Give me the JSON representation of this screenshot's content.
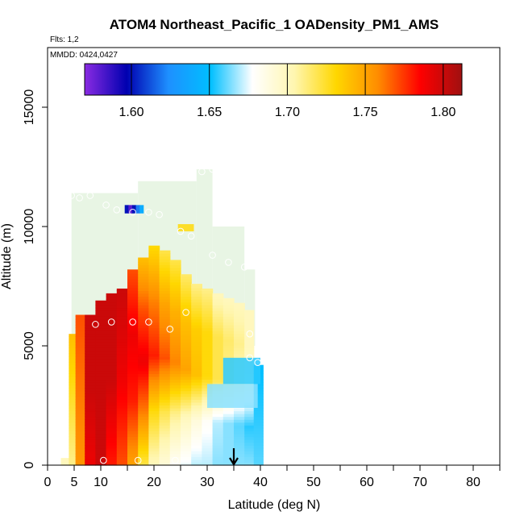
{
  "chart_data": {
    "type": "heatmap",
    "title": "ATOM4 Northeast_Pacific_1 OADensity_PM1_AMS",
    "flights_label": "Flts: 1,2",
    "mmdd_label": "MMDD: 0424,0427",
    "xlabel": "Latitude (deg N)",
    "ylabel": "Altitude (m)",
    "xlim": [
      0,
      85
    ],
    "ylim": [
      0,
      17500
    ],
    "x_ticks": [
      0,
      5,
      10,
      20,
      30,
      40,
      50,
      60,
      70,
      80
    ],
    "x_ticks_unlabeled": [
      15,
      25,
      35,
      45,
      55,
      65,
      75,
      85
    ],
    "y_ticks": [
      0,
      5000,
      10000,
      15000
    ],
    "colorbar": {
      "range": [
        1.57,
        1.812
      ],
      "tick_values": [
        1.6,
        1.65,
        1.7,
        1.75,
        1.8
      ],
      "tick_labels": [
        "1.60",
        "1.65",
        "1.70",
        "1.75",
        "1.80"
      ],
      "stops": [
        "#8a2be2",
        "#0000b0",
        "#1e90ff",
        "#00bfff",
        "#ffffff",
        "#fff6b0",
        "#ffd700",
        "#ff8c00",
        "#ff0000",
        "#a01010"
      ]
    },
    "marker_latitude": 35,
    "columns": [
      {
        "lat": 3.5,
        "z_top": 300,
        "values": [
          1.7
        ]
      },
      {
        "lat": 4.5,
        "z_top": 5500,
        "values": [
          1.71,
          1.74
        ]
      },
      {
        "lat": 6,
        "z_top": 6300,
        "values": [
          1.755,
          1.77
        ]
      },
      {
        "lat": 8,
        "z_top": 6300,
        "values": [
          1.79,
          1.8,
          1.8
        ]
      },
      {
        "lat": 10,
        "z_top": 6900,
        "values": [
          1.8,
          1.8,
          1.8
        ]
      },
      {
        "lat": 12,
        "z_top": 7200,
        "values": [
          1.78,
          1.8,
          1.8
        ]
      },
      {
        "lat": 14,
        "z_top": 7400,
        "values": [
          1.77,
          1.79,
          1.8
        ]
      },
      {
        "lat": 16,
        "z_top": 8200,
        "values": [
          1.75,
          1.78,
          1.79,
          1.77
        ]
      },
      {
        "lat": 18,
        "z_top": 8700,
        "values": [
          1.72,
          1.76,
          1.79,
          1.77,
          1.74
        ]
      },
      {
        "lat": 20,
        "z_top": 9200,
        "values": [
          1.7,
          1.73,
          1.78,
          1.76,
          1.73
        ]
      },
      {
        "lat": 22,
        "z_top": 9000,
        "values": [
          1.69,
          1.72,
          1.77,
          1.75,
          1.72
        ]
      },
      {
        "lat": 24,
        "z_top": 8600,
        "values": [
          1.68,
          1.71,
          1.76,
          1.745,
          1.72
        ]
      },
      {
        "lat": 26,
        "z_top": 8000,
        "values": [
          1.675,
          1.7,
          1.75,
          1.74,
          1.715
        ]
      },
      {
        "lat": 28,
        "z_top": 7600,
        "values": [
          1.67,
          1.69,
          1.74,
          1.735,
          1.71
        ]
      },
      {
        "lat": 30,
        "z_top": 7400,
        "values": [
          1.67,
          1.68,
          1.73,
          1.73,
          1.71
        ]
      },
      {
        "lat": 32,
        "z_top": 7200,
        "values": [
          1.665,
          1.67,
          1.72,
          1.72,
          1.7
        ]
      },
      {
        "lat": 34,
        "z_top": 7000,
        "values": [
          1.665,
          1.665,
          1.71,
          1.715,
          1.7
        ]
      },
      {
        "lat": 36,
        "z_top": 6800,
        "values": [
          1.665,
          1.66,
          1.7,
          1.71,
          1.7
        ]
      },
      {
        "lat": 38,
        "z_top": 6500,
        "values": [
          1.665,
          1.655,
          1.69,
          1.7,
          1.7
        ]
      },
      {
        "lat": 39.5,
        "z_top": 4200,
        "values": [
          1.66,
          1.65
        ]
      }
    ],
    "background_blocks": [
      {
        "x0": 4.5,
        "x1": 17,
        "z0": 5000,
        "z1": 11400,
        "value": 1.705
      },
      {
        "x0": 17,
        "x1": 28,
        "z0": 5000,
        "z1": 11900,
        "value": 1.705
      },
      {
        "x0": 28,
        "x1": 31,
        "z0": 5000,
        "z1": 12400,
        "value": 1.705
      },
      {
        "x0": 31,
        "x1": 37,
        "z0": 5000,
        "z1": 10000,
        "value": 1.705
      },
      {
        "x0": 37,
        "x1": 39,
        "z0": 5000,
        "z1": 8200,
        "value": 1.705
      }
    ],
    "features": [
      {
        "x0": 14.5,
        "x1": 18,
        "z0": 10550,
        "z1": 10900,
        "kind": "strip",
        "values": [
          1.6,
          1.58,
          1.6,
          1.62,
          1.64
        ]
      },
      {
        "x0": 24.5,
        "x1": 27.5,
        "z0": 9800,
        "z1": 10100,
        "kind": "block",
        "value": 1.73
      },
      {
        "x0": 33,
        "x1": 40,
        "z0": 3400,
        "z1": 4500,
        "kind": "block",
        "value": 1.655
      },
      {
        "x0": 30,
        "x1": 39.5,
        "z0": 2400,
        "z1": 3400,
        "kind": "block",
        "value": 1.665
      }
    ],
    "points": [
      {
        "lat": 4.5,
        "alt": 11300
      },
      {
        "lat": 6,
        "alt": 11200
      },
      {
        "lat": 8,
        "alt": 11300
      },
      {
        "lat": 11,
        "alt": 10900
      },
      {
        "lat": 13,
        "alt": 10700
      },
      {
        "lat": 16,
        "alt": 10600
      },
      {
        "lat": 19,
        "alt": 10600
      },
      {
        "lat": 21,
        "alt": 10500
      },
      {
        "lat": 25,
        "alt": 9800
      },
      {
        "lat": 27,
        "alt": 9600
      },
      {
        "lat": 31,
        "alt": 8800
      },
      {
        "lat": 34,
        "alt": 8500
      },
      {
        "lat": 37,
        "alt": 8300
      },
      {
        "lat": 29,
        "alt": 12300
      },
      {
        "lat": 31,
        "alt": 12400
      },
      {
        "lat": 9,
        "alt": 5900
      },
      {
        "lat": 12,
        "alt": 6000
      },
      {
        "lat": 16,
        "alt": 6000
      },
      {
        "lat": 19,
        "alt": 6000
      },
      {
        "lat": 23,
        "alt": 5700
      },
      {
        "lat": 26,
        "alt": 6400
      },
      {
        "lat": 38,
        "alt": 4500
      },
      {
        "lat": 39.5,
        "alt": 4300
      },
      {
        "lat": 10.5,
        "alt": 200
      },
      {
        "lat": 17,
        "alt": 200
      },
      {
        "lat": 24,
        "alt": 200
      },
      {
        "lat": 38,
        "alt": 5500
      }
    ]
  }
}
